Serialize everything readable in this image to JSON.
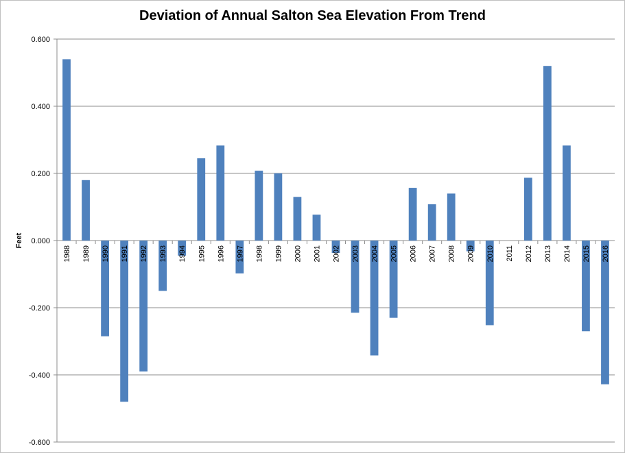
{
  "chart_data": {
    "type": "bar",
    "title": "Deviation of Annual Salton Sea Elevation From Trend",
    "xlabel": "",
    "ylabel": "Feet",
    "ylim": [
      -0.6,
      0.6
    ],
    "yticks": [
      "-0.600",
      "-0.400",
      "-0.200",
      "0.000",
      "0.200",
      "0.400",
      "0.600"
    ],
    "grid": true,
    "bar_color": "#4f81bd",
    "categories": [
      "1988",
      "1989",
      "1990",
      "1991",
      "1992",
      "1993",
      "1994",
      "1995",
      "1996",
      "1997",
      "1998",
      "1999",
      "2000",
      "2001",
      "2002",
      "2003",
      "2004",
      "2005",
      "2006",
      "2007",
      "2008",
      "2009",
      "2010",
      "2011",
      "2012",
      "2013",
      "2014",
      "2015",
      "2016"
    ],
    "values": [
      0.54,
      0.18,
      -0.285,
      -0.48,
      -0.39,
      -0.15,
      -0.045,
      0.245,
      0.283,
      -0.098,
      0.208,
      0.2,
      0.13,
      0.077,
      -0.037,
      -0.215,
      -0.342,
      -0.23,
      0.157,
      0.108,
      0.14,
      -0.032,
      -0.252,
      0.0,
      0.187,
      0.52,
      0.283,
      -0.27,
      -0.428
    ]
  }
}
